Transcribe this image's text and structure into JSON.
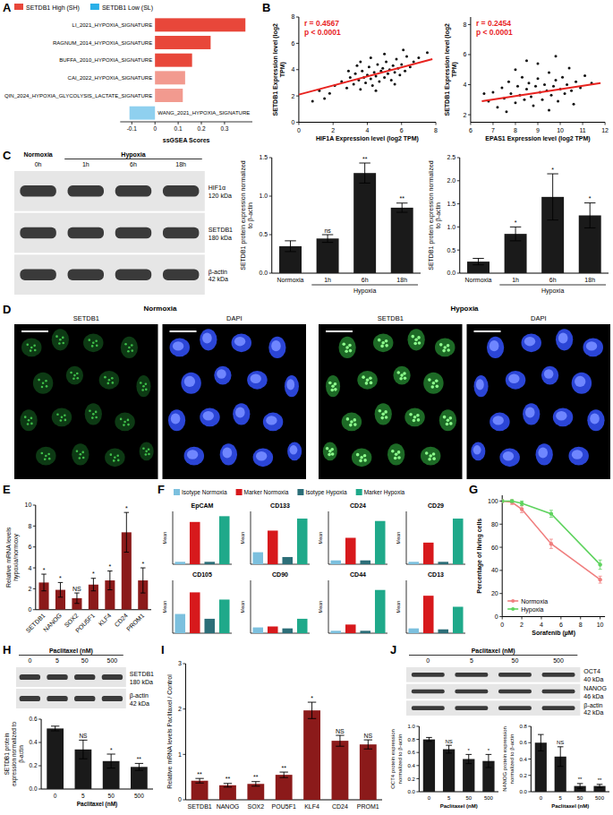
{
  "chart_data": [
    {
      "type": "bar",
      "panel": "A",
      "orientation": "horizontal",
      "legend": "top",
      "categories": [
        "LI_2021_HYPOXIA_SIGNATURE",
        "RAGNUM_2014_HYPOXIA_SIGNATURE",
        "BUFFA_2010_HYPOXIA_SIGNATURE",
        "CAI_2022_HYPOXIA_SIGNATURE",
        "QIN_2024_HYPOXIA_GLYCOLYSIS_LACTATE_SIGNATURE",
        "WANG_2021_HYPOXIA_SIGNATURE"
      ],
      "series": [
        {
          "name": "SETDB1 High (SH)",
          "color": "#e8473a",
          "colors": [
            "#e8473a",
            "#e8473a",
            "#e8473a",
            "#f29a8f",
            "#f29a8f",
            "#f29a8f"
          ],
          "values": [
            0.39,
            0.24,
            0.16,
            0.13,
            0.12,
            null
          ]
        },
        {
          "name": "SETDB1 Low (SL)",
          "color": "#2ab0e8",
          "colors": [
            "#8fd0ef",
            "#8fd0ef",
            "#8fd0ef",
            "#8fd0ef",
            "#8fd0ef",
            "#8fd0ef"
          ],
          "values": [
            null,
            null,
            null,
            null,
            null,
            -0.11
          ]
        }
      ],
      "xlabel": "ssGSEA Scores",
      "xlim": [
        -0.15,
        0.42
      ],
      "xticks": [
        -0.1,
        0,
        0.1,
        0.2,
        0.3
      ]
    },
    {
      "type": "scatter",
      "panel": "B",
      "x": [
        2.1,
        2.5,
        2.8,
        3.0,
        3.2,
        3.3,
        3.5,
        3.6,
        3.7,
        3.8,
        3.9,
        4.0,
        4.1,
        4.2,
        4.3,
        4.4,
        4.5,
        4.6,
        4.7,
        4.8,
        4.9,
        5.0,
        5.1,
        5.2,
        5.3,
        5.4,
        5.5,
        5.6,
        5.7,
        5.8,
        5.9,
        6.0,
        6.2,
        6.3,
        6.5,
        6.7,
        7.0,
        7.5,
        1.8,
        1.5,
        1.2,
        3.4,
        4.5,
        5.0,
        2.9,
        3.6,
        6.1,
        4.2,
        5.6,
        0.8
      ],
      "y": [
        2.8,
        3.1,
        2.6,
        3.4,
        2.9,
        3.7,
        3.2,
        2.5,
        3.9,
        3.4,
        3.0,
        3.6,
        4.2,
        3.3,
        2.8,
        3.8,
        3.5,
        4.4,
        3.1,
        3.9,
        4.1,
        3.4,
        4.6,
        3.7,
        4.0,
        3.2,
        4.3,
        3.8,
        4.8,
        4.1,
        3.6,
        4.4,
        3.9,
        5.0,
        4.2,
        4.6,
        4.9,
        5.3,
        2.2,
        1.8,
        2.4,
        4.3,
        2.4,
        5.2,
        3.9,
        4.6,
        5.5,
        4.9,
        2.9,
        1.6
      ],
      "color": "#111111",
      "trend_line": {
        "x": [
          0,
          7.8
        ],
        "y": [
          2.1,
          4.8
        ],
        "color": "#e8231f"
      },
      "annotations": [
        "r = 0.4567",
        "p < 0.0001"
      ],
      "xlabel": "HIF1A Expression level (log2 TPM)",
      "ylabel": "SETDB1 Expression level (log2 TPM)",
      "xlim": [
        0,
        8
      ],
      "ylim": [
        0,
        8
      ],
      "xticks": [
        0,
        2,
        4,
        6,
        8
      ],
      "yticks": [
        0,
        2,
        4,
        6,
        8
      ]
    },
    {
      "type": "scatter",
      "x": [
        6.8,
        7.0,
        7.2,
        7.4,
        7.5,
        7.7,
        7.8,
        8.0,
        8.1,
        8.2,
        8.3,
        8.4,
        8.5,
        8.6,
        8.7,
        8.8,
        8.9,
        9.0,
        9.1,
        9.2,
        9.3,
        9.4,
        9.5,
        9.6,
        9.7,
        9.8,
        9.9,
        10.0,
        10.1,
        10.2,
        10.3,
        10.4,
        10.5,
        10.7,
        10.9,
        11.1,
        11.4,
        8.0,
        9.0,
        7.6,
        9.5,
        10.6,
        6.6,
        8.5,
        9.8
      ],
      "y": [
        2.9,
        3.5,
        2.5,
        3.8,
        3.1,
        4.2,
        3.4,
        2.8,
        3.9,
        3.3,
        4.5,
        3.0,
        3.7,
        4.1,
        3.2,
        2.6,
        3.9,
        4.4,
        3.5,
        3.0,
        4.0,
        3.6,
        4.8,
        3.3,
        3.9,
        4.3,
        2.9,
        3.7,
        4.5,
        3.4,
        4.0,
        5.1,
        3.6,
        4.2,
        3.8,
        4.6,
        4.1,
        5.0,
        5.4,
        2.2,
        2.3,
        2.7,
        3.4,
        5.6,
        5.9
      ],
      "color": "#111111",
      "trend_line": {
        "x": [
          6.5,
          11.8
        ],
        "y": [
          2.9,
          4.1
        ],
        "color": "#e8231f"
      },
      "annotations": [
        "r = 0.2454",
        "p < 0.0001"
      ],
      "xlabel": "EPAS1 Expression level (log2 TPM)",
      "ylabel": "SETDB1 Expression level (log2 TPM)",
      "xlim": [
        6,
        12
      ],
      "ylim": [
        1.5,
        8.5
      ],
      "xticks": [
        6,
        7,
        8,
        9,
        10,
        11,
        12
      ],
      "yticks": [
        2,
        4,
        6,
        8
      ]
    },
    {
      "type": "bar",
      "categories": [
        "Normoxia",
        "1h",
        "6h",
        "18h"
      ],
      "category_groups": [
        null,
        "Hypoxia",
        "Hypoxia",
        "Hypoxia"
      ],
      "values": [
        0.35,
        0.45,
        1.3,
        0.85
      ],
      "errors": [
        0.07,
        0.05,
        0.13,
        0.06
      ],
      "significance": [
        null,
        "ns",
        "**",
        "**"
      ],
      "color": "#1a1a1a",
      "ylabel": "SETDB1 protein expression normalized to β-actin",
      "ylim": [
        0,
        1.5
      ],
      "yticks": [
        {
          "value": 0,
          "label": "0.0"
        },
        0.5,
        {
          "value": 1,
          "label": "1.0"
        },
        1.5
      ]
    },
    {
      "type": "bar",
      "categories": [
        "Normoxia",
        "1h",
        "6h",
        "18h"
      ],
      "category_groups": [
        null,
        "Hypoxia",
        "Hypoxia",
        "Hypoxia"
      ],
      "values": [
        0.25,
        0.85,
        1.65,
        1.25
      ],
      "errors": [
        0.07,
        0.15,
        0.5,
        0.27
      ],
      "significance": [
        null,
        "*",
        "*",
        "*"
      ],
      "color": "#1a1a1a",
      "ylabel": "SETDB1 protein expression normalized to β-actin",
      "ylim": [
        0,
        2.5
      ],
      "yticks": [
        {
          "value": 0,
          "label": "0.0"
        },
        0.5,
        {
          "value": 1,
          "label": "1.0"
        },
        1.5,
        {
          "value": 2,
          "label": "2.0"
        },
        2.5
      ]
    },
    {
      "type": "bar",
      "panel": "E",
      "categories": [
        "SETDB1",
        "NANOG",
        "SOX2",
        "POU5F1",
        "KLF4",
        "CD24",
        "PROM1"
      ],
      "values": [
        2.6,
        1.9,
        1.1,
        2.4,
        2.8,
        7.4,
        2.8
      ],
      "errors": [
        0.8,
        0.7,
        0.5,
        0.6,
        0.9,
        1.9,
        1.2
      ],
      "significance": [
        "*",
        "*",
        "NS",
        "*",
        "*",
        "*",
        "*"
      ],
      "color": "#8b1a1a",
      "ylabel": "Relative mRNA levels hypoxia/normoxy",
      "ylim": [
        0,
        10
      ],
      "yticks": [
        0,
        2,
        4,
        6,
        8,
        10
      ]
    },
    {
      "type": "bar",
      "panel": "F",
      "legend": "top",
      "tick_labels": false,
      "ylabel": "Mean",
      "ylim": [
        0,
        110
      ],
      "categories": [
        "EpCAM",
        "CD133",
        "CD24",
        "CD29",
        "CD105",
        "CD90",
        "CD44",
        "CD13"
      ],
      "series": [
        {
          "name": "Isotype Normoxia",
          "color": "#7cc0de",
          "values": [
            5,
            25,
            8,
            5,
            40,
            12,
            5,
            10
          ]
        },
        {
          "name": "Marker Normoxia",
          "color": "#d7191c",
          "values": [
            88,
            70,
            55,
            45,
            85,
            14,
            18,
            78
          ]
        },
        {
          "name": "Isotype Hypoxia",
          "color": "#2c6e78",
          "values": [
            5,
            15,
            8,
            5,
            30,
            10,
            5,
            8
          ]
        },
        {
          "name": "Marker Hypoxia",
          "color": "#1fa98a",
          "values": [
            100,
            95,
            90,
            95,
            70,
            30,
            90,
            55
          ]
        }
      ]
    },
    {
      "type": "line",
      "panel": "G",
      "legend": "lower left",
      "x": [
        0,
        1,
        2,
        5,
        10
      ],
      "series": [
        {
          "name": "Normoxia",
          "color": "#f07f7f",
          "marker": "circle",
          "values": [
            100,
            99,
            93,
            63,
            32
          ],
          "errors": [
            1,
            2,
            3,
            4,
            3
          ]
        },
        {
          "name": "Hypoxia",
          "color": "#5fd35f",
          "marker": "circle",
          "values": [
            100,
            100,
            98,
            89,
            45
          ],
          "errors": [
            1,
            1,
            2,
            3,
            4
          ]
        }
      ],
      "xlabel": "Sorafenib (µM)",
      "ylabel": "Percentage of living cells",
      "xlim": [
        0,
        10.5
      ],
      "ylim": [
        0,
        105
      ],
      "xticks": [
        0,
        2,
        4,
        6,
        8,
        10
      ],
      "yticks": [
        0,
        20,
        40,
        60,
        80,
        100
      ]
    },
    {
      "type": "bar",
      "categories": [
        "0",
        "5",
        "50",
        "500"
      ],
      "values": [
        0.52,
        0.34,
        0.24,
        0.19
      ],
      "errors": [
        0.02,
        0.08,
        0.06,
        0.03
      ],
      "significance": [
        null,
        "NS",
        "*",
        "**"
      ],
      "color": "#1a1a1a",
      "ylabel": "SETDB1 protein expression normalized to β-actin",
      "xlabel": "Paclitaxel (nM)",
      "ylim": [
        0,
        0.6
      ],
      "yticks": [
        {
          "value": 0,
          "label": "0.0"
        },
        0.2,
        0.4,
        0.6
      ]
    },
    {
      "type": "bar",
      "panel": "I",
      "categories": [
        "SETDB1",
        "NANOG",
        "SOX2",
        "POU5F1",
        "KLF4",
        "CD24",
        "PROM1"
      ],
      "values": [
        0.42,
        0.32,
        0.35,
        0.55,
        1.97,
        1.3,
        1.22
      ],
      "errors": [
        0.05,
        0.04,
        0.05,
        0.06,
        0.18,
        0.12,
        0.1
      ],
      "significance": [
        "**",
        "**",
        "**",
        "**",
        "*",
        "NS",
        "NS"
      ],
      "color": "#8b1a1a",
      "ylabel": "Relative mRNA levels Paclitaxel / Control",
      "ylim": [
        0,
        3
      ],
      "yticks": [
        0,
        1,
        2,
        3
      ]
    },
    {
      "type": "bar",
      "categories": [
        "0",
        "5",
        "50",
        "500"
      ],
      "values": [
        0.8,
        0.65,
        0.5,
        0.47
      ],
      "errors": [
        0.03,
        0.06,
        0.07,
        0.1
      ],
      "significance": [
        null,
        "NS",
        "*",
        "*"
      ],
      "color": "#1a1a1a",
      "ylabel": "OCT4 protein expression normalized to β-actin",
      "xlabel": "Paclitaxel (nM)",
      "ylim": [
        0,
        1
      ],
      "yticks": [
        {
          "value": 0,
          "label": "0.0"
        },
        0.2,
        0.4,
        0.6,
        0.8,
        {
          "value": 1,
          "label": "1.0"
        }
      ]
    },
    {
      "type": "bar",
      "categories": [
        "0",
        "5",
        "50",
        "500"
      ],
      "values": [
        0.6,
        0.43,
        0.07,
        0.07
      ],
      "errors": [
        0.1,
        0.12,
        0.03,
        0.02
      ],
      "significance": [
        null,
        "NS",
        "**",
        "**"
      ],
      "color": "#1a1a1a",
      "ylabel": "NANOG protein expression normalized to β-actin",
      "xlabel": "Paclitaxel (nM)",
      "ylim": [
        0,
        0.8
      ],
      "yticks": [
        {
          "value": 0,
          "label": "0.0"
        },
        0.2,
        0.4,
        0.6,
        0.8
      ]
    }
  ],
  "blots": [
    {
      "panel": "C",
      "groups": [
        {
          "label": "Normoxia",
          "lanes": [
            "0h"
          ]
        },
        {
          "label": "Hypoxia",
          "lanes": [
            "1h",
            "6h",
            "18h"
          ]
        }
      ],
      "rows": [
        {
          "name": "HIF1α",
          "size": "120 kDa"
        },
        {
          "name": "SETDB1",
          "size": "180 kDa"
        },
        {
          "name": "β-actin",
          "size": "42 kDa"
        }
      ]
    },
    {
      "panel": "H",
      "groups": [
        {
          "label": "Paclitaxel (nM)",
          "lanes": [
            "0",
            "5",
            "50",
            "500"
          ]
        }
      ],
      "rows": [
        {
          "name": "SETDB1",
          "size": "180 kDa"
        },
        {
          "name": "β-actin",
          "size": "42 kDa"
        }
      ]
    },
    {
      "panel": "J",
      "groups": [
        {
          "label": "Paclitaxel (nM)",
          "lanes": [
            "0",
            "5",
            "50",
            "500"
          ]
        }
      ],
      "rows": [
        {
          "name": "OCT4",
          "size": "40 kDa"
        },
        {
          "name": "NANOG",
          "size": "46 kDa"
        },
        {
          "name": "β-actin",
          "size": "42 kDa"
        }
      ]
    }
  ],
  "images": {
    "panel": "D",
    "conditions": [
      {
        "label": "Normoxia",
        "channels": [
          "SETDB1",
          "DAPI"
        ]
      },
      {
        "label": "Hypoxia",
        "channels": [
          "SETDB1",
          "DAPI"
        ]
      }
    ]
  }
}
